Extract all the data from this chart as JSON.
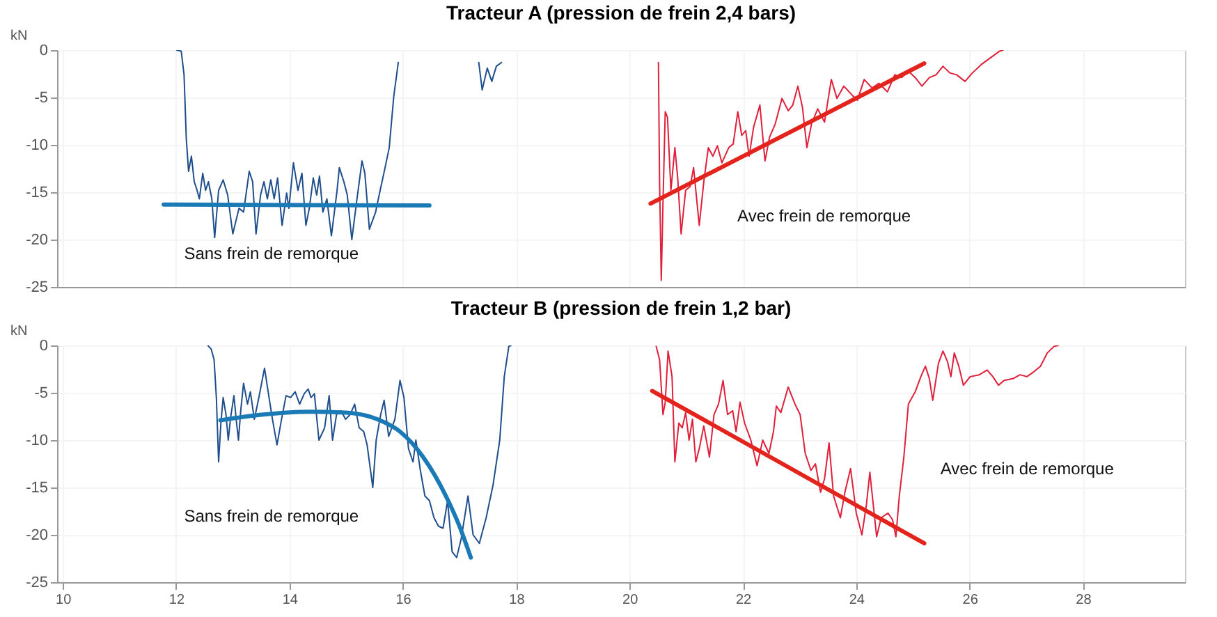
{
  "chart_data": [
    {
      "type": "line",
      "title": "Tracteur A (pression de frein 2,4 bars)",
      "ylabel": "kN",
      "xlim": [
        9.9,
        29.8
      ],
      "ylim": [
        -25,
        0
      ],
      "xticks": [
        10,
        12,
        14,
        16,
        18,
        20,
        22,
        24,
        26,
        28
      ],
      "yticks": [
        -25,
        -20,
        -15,
        -10,
        -5,
        0
      ],
      "grid": true,
      "tick_labels": "y",
      "marker": "none",
      "line_style": "solid",
      "annotations": [
        "Sans frein de remorque",
        "Avec frein de remorque"
      ],
      "series": [
        {
          "color": "#1f4e8c",
          "x": [
            12.01,
            12.09,
            12.14,
            12.18,
            12.22,
            12.27,
            12.32,
            12.36,
            12.41,
            12.47,
            12.52,
            12.57,
            12.63,
            12.68,
            12.75,
            12.83,
            12.91,
            13.0,
            13.11,
            13.19,
            13.29,
            13.35,
            13.41,
            13.49,
            13.55,
            13.61,
            13.67,
            13.73,
            13.79,
            13.87,
            13.95,
            13.99,
            14.07,
            14.15,
            14.22,
            14.29,
            14.35,
            14.42,
            14.48,
            14.53,
            14.59,
            14.66,
            14.74,
            14.84,
            14.88,
            14.96,
            15.02,
            15.1,
            15.2,
            15.28,
            15.33,
            15.41,
            15.52,
            15.6,
            15.68,
            15.76,
            15.84,
            15.92,
            16.5,
            17.34,
            17.4,
            17.49,
            17.57,
            17.65,
            17.74
          ],
          "values": [
            0,
            -0.1,
            -2.6,
            -9.4,
            -12.8,
            -11.2,
            -13.9,
            -14.6,
            -15.7,
            -13,
            -14.8,
            -13.9,
            -15.7,
            -19.8,
            -14.8,
            -13.7,
            -15.3,
            -19.4,
            -16.7,
            -17.1,
            -12.8,
            -13.9,
            -19.4,
            -15.3,
            -13.9,
            -15.7,
            -13.7,
            -15.7,
            -13.5,
            -18.5,
            -15.1,
            -16.7,
            -11.9,
            -14.8,
            -13,
            -18.5,
            -16.7,
            -13.5,
            -15.3,
            -13.3,
            -17.1,
            -15.7,
            -19.6,
            -14.8,
            -12.4,
            -13.9,
            -15.3,
            -20,
            -15.3,
            -11.7,
            -13,
            -18.9,
            -17.1,
            -14.8,
            -12.6,
            -10.3,
            -4.9,
            -1.3,
            null,
            -1.3,
            -4.2,
            -1.9,
            -3.3,
            -1.7,
            -1.3
          ]
        },
        {
          "type": "line",
          "color": "#1a7ab5",
          "x": [
            11.78,
            16.47
          ],
          "values": [
            -16.3,
            -16.4
          ]
        },
        {
          "color": "#e0203a",
          "x": [
            20.51,
            20.53,
            20.56,
            20.59,
            20.63,
            20.67,
            20.73,
            20.8,
            20.85,
            20.91,
            20.99,
            21.07,
            21.13,
            21.23,
            21.31,
            21.39,
            21.47,
            21.55,
            21.63,
            21.75,
            21.83,
            21.91,
            21.98,
            22.05,
            22.11,
            22.19,
            22.3,
            22.39,
            22.47,
            22.57,
            22.69,
            22.8,
            22.88,
            22.97,
            23.05,
            23.13,
            23.21,
            23.32,
            23.44,
            23.56,
            23.66,
            23.78,
            23.92,
            24.02,
            24.14,
            24.28,
            24.4,
            24.55,
            24.68,
            24.8,
            24.92,
            25.04,
            25.16,
            25.29,
            25.41,
            25.53,
            25.65,
            25.77,
            25.92,
            26.05,
            26.21,
            26.37,
            26.53,
            26.59
          ],
          "values": [
            -1.3,
            -13.9,
            -24.3,
            -16.2,
            -6.5,
            -7.1,
            -14.8,
            -10.3,
            -13.5,
            -19.4,
            -14.8,
            -14.4,
            -12.4,
            -18.5,
            -13.9,
            -10.3,
            -11.2,
            -10.1,
            -11.9,
            -10.3,
            -9.9,
            -6.5,
            -9,
            -8.5,
            -11.2,
            -8.1,
            -5.8,
            -11.7,
            -9.2,
            -7.8,
            -5.1,
            -6.4,
            -5.8,
            -3.8,
            -6,
            -10.3,
            -7.8,
            -6.2,
            -7.6,
            -3.1,
            -5.1,
            -3.8,
            -4.7,
            -5.3,
            -3.1,
            -4,
            -3.5,
            -4.4,
            -2.6,
            -2.9,
            -2.2,
            -2.9,
            -3.8,
            -2.9,
            -2.6,
            -1.7,
            -2.4,
            -2.6,
            -3.3,
            -2.4,
            -1.5,
            -0.8,
            -0.1,
            0
          ]
        },
        {
          "type": "line",
          "color": "#e3241c",
          "x": [
            20.37,
            25.2
          ],
          "values": [
            -16.2,
            -1.4
          ]
        }
      ]
    },
    {
      "type": "line",
      "title": "Tracteur B (pression de frein 1,2 bar)",
      "ylabel": "kN",
      "xlim": [
        9.9,
        29.8
      ],
      "ylim": [
        -25,
        0
      ],
      "xticks": [
        10,
        12,
        14,
        16,
        18,
        20,
        22,
        24,
        26,
        28
      ],
      "yticks": [
        -25,
        -20,
        -15,
        -10,
        -5,
        0
      ],
      "grid": true,
      "marker": "none",
      "line_style": "solid",
      "annotations": [
        "Sans frein de remorque",
        "Avec frein de remorque"
      ],
      "series": [
        {
          "color": "#1f4e8c",
          "x": [
            12.56,
            12.62,
            12.67,
            12.71,
            12.75,
            12.79,
            12.83,
            12.88,
            12.92,
            12.96,
            13.02,
            13.06,
            13.1,
            13.14,
            13.19,
            13.26,
            13.31,
            13.38,
            13.46,
            13.56,
            13.64,
            13.7,
            13.78,
            13.86,
            13.94,
            14.02,
            14.1,
            14.18,
            14.26,
            14.33,
            14.38,
            14.44,
            14.52,
            14.62,
            14.7,
            14.76,
            14.83,
            14.91,
            14.99,
            15.07,
            15.15,
            15.23,
            15.31,
            15.37,
            15.47,
            15.53,
            15.61,
            15.67,
            15.75,
            15.86,
            15.95,
            16.02,
            16.1,
            16.18,
            16.23,
            16.31,
            16.39,
            16.47,
            16.55,
            16.63,
            16.71,
            16.79,
            16.87,
            16.95,
            17.03,
            17.15,
            17.24,
            17.35,
            17.47,
            17.59,
            17.71,
            17.79,
            17.87,
            17.91
          ],
          "values": [
            0,
            -0.4,
            -1.5,
            -5.5,
            -12.3,
            -8.2,
            -5.5,
            -7.3,
            -10,
            -7.7,
            -5.3,
            -7.8,
            -10,
            -6.9,
            -4,
            -6.2,
            -4.9,
            -7.8,
            -5.5,
            -2.4,
            -5.5,
            -7.8,
            -10.5,
            -7.8,
            -5.3,
            -5.5,
            -4.9,
            -6.2,
            -5.1,
            -4.6,
            -5.5,
            -5.1,
            -10,
            -8.7,
            -5.3,
            -10,
            -7.3,
            -6.9,
            -7.8,
            -7.3,
            -6.2,
            -8.7,
            -9.1,
            -10.5,
            -15,
            -10,
            -7.3,
            -5.8,
            -9.6,
            -7.8,
            -3.7,
            -5.5,
            -10.9,
            -12.3,
            -10,
            -13.2,
            -15.9,
            -16.4,
            -18.2,
            -19.1,
            -19.3,
            -16.4,
            -21.8,
            -22.4,
            -20.4,
            -15.9,
            -20,
            -20.9,
            -18.2,
            -14.8,
            -10,
            -3.3,
            -0.1,
            0
          ]
        },
        {
          "type": "line",
          "color": "#1a7ab5",
          "x": [
            12.78,
            13.54,
            14.35,
            14.99,
            15.55,
            15.95,
            16.36,
            16.76,
            17.0,
            17.2
          ],
          "values": [
            -7.9,
            -7.3,
            -7,
            -7.1,
            -7.8,
            -9.1,
            -11.8,
            -15.9,
            -19.1,
            -22.4
          ]
        },
        {
          "color": "#e0203a",
          "x": [
            20.47,
            20.53,
            20.59,
            20.63,
            20.68,
            20.75,
            20.8,
            20.87,
            20.93,
            20.99,
            21.05,
            21.11,
            21.17,
            21.23,
            21.31,
            21.41,
            21.49,
            21.57,
            21.65,
            21.73,
            21.82,
            21.88,
            21.95,
            22.03,
            22.14,
            22.25,
            22.35,
            22.46,
            22.54,
            22.59,
            22.67,
            22.8,
            22.92,
            23.01,
            23.1,
            23.2,
            23.28,
            23.37,
            23.44,
            23.52,
            23.6,
            23.72,
            23.8,
            23.9,
            24.0,
            24.1,
            24.18,
            24.24,
            24.36,
            24.44,
            24.56,
            24.64,
            24.7,
            24.76,
            24.84,
            24.92,
            25.04,
            25.14,
            25.22,
            25.29,
            25.35,
            25.45,
            25.53,
            25.61,
            25.67,
            25.73,
            25.81,
            25.89,
            26.01,
            26.17,
            26.31,
            26.41,
            26.51,
            26.61,
            26.77,
            26.89,
            27.01,
            27.13,
            27.25,
            27.37,
            27.49,
            27.57
          ],
          "values": [
            -0.1,
            -1.5,
            -7.3,
            -6,
            -0.6,
            -3.3,
            -12.3,
            -8.2,
            -8.7,
            -7.1,
            -10,
            -7.8,
            -12.3,
            -10.9,
            -8.5,
            -11.8,
            -7.3,
            -6.2,
            -3.7,
            -7.3,
            -6.9,
            -9.1,
            -6,
            -8.2,
            -10,
            -12.7,
            -10,
            -11.4,
            -9.1,
            -6.4,
            -7.1,
            -4.4,
            -6.2,
            -7.3,
            -11.4,
            -13.2,
            -12.5,
            -15.5,
            -14.1,
            -10.3,
            -15.9,
            -18.2,
            -15.5,
            -13,
            -17.7,
            -20,
            -16.8,
            -13.4,
            -20.2,
            -18.2,
            -17.7,
            -18.4,
            -20.2,
            -15.9,
            -11.8,
            -6.2,
            -4.9,
            -3.3,
            -2.2,
            -3.5,
            -5.8,
            -1.9,
            -0.6,
            -1.7,
            -3.3,
            -0.8,
            -2.2,
            -4.2,
            -3.3,
            -3.1,
            -2.6,
            -3.3,
            -4.2,
            -3.7,
            -3.5,
            -3.1,
            -3.3,
            -2.8,
            -2.2,
            -0.8,
            -0.1,
            0
          ]
        },
        {
          "type": "line",
          "color": "#e3241c",
          "x": [
            20.4,
            25.2
          ],
          "values": [
            -4.8,
            -20.9
          ]
        }
      ]
    }
  ]
}
